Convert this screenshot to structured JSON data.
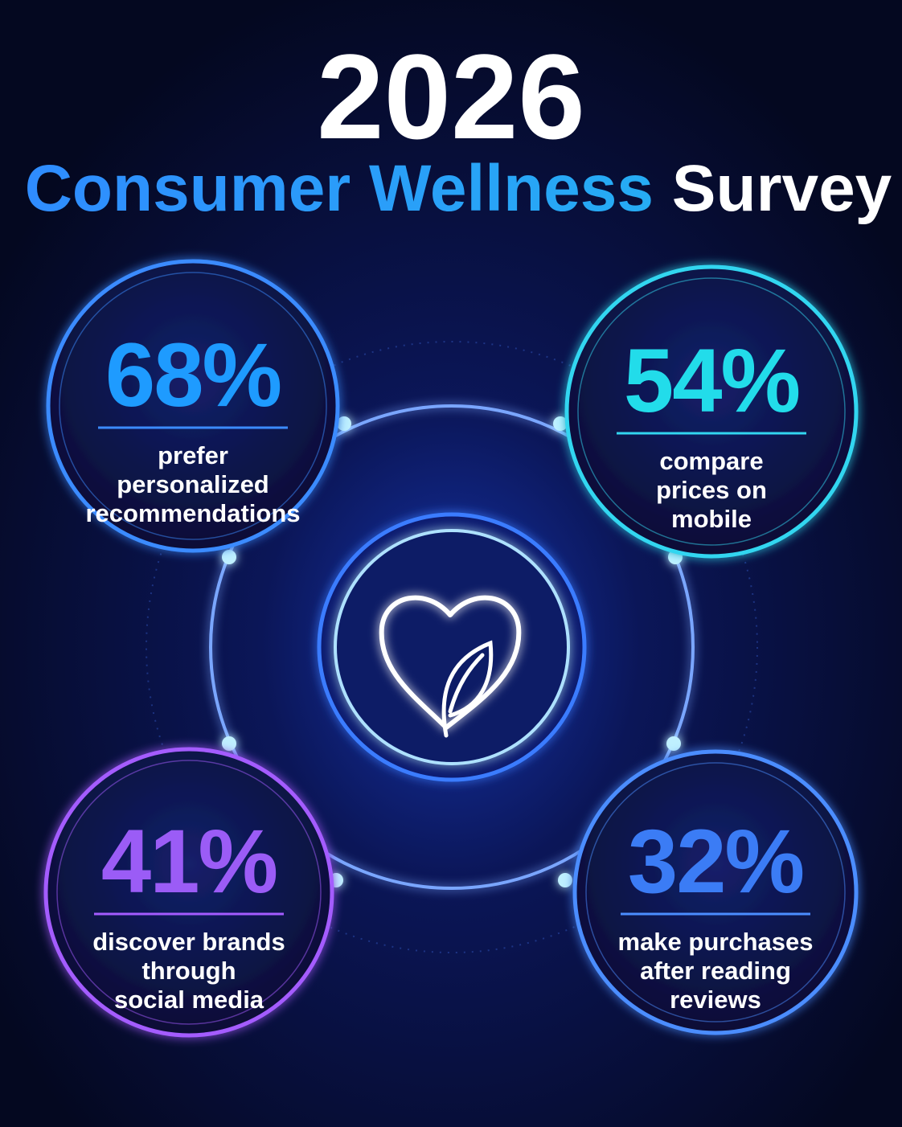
{
  "header": {
    "year": "2026",
    "title_highlight": "Consumer Wellness",
    "title_rest": "Survey"
  },
  "stats": [
    {
      "value": "68%",
      "lines": [
        "prefer",
        "personalized",
        "recommendations"
      ]
    },
    {
      "value": "54%",
      "lines": [
        "compare",
        "prices on",
        "mobile"
      ]
    },
    {
      "value": "41%",
      "lines": [
        "discover brands",
        "through",
        "social media"
      ]
    },
    {
      "value": "32%",
      "lines": [
        "make purchases",
        "after reading",
        "reviews"
      ]
    }
  ]
}
